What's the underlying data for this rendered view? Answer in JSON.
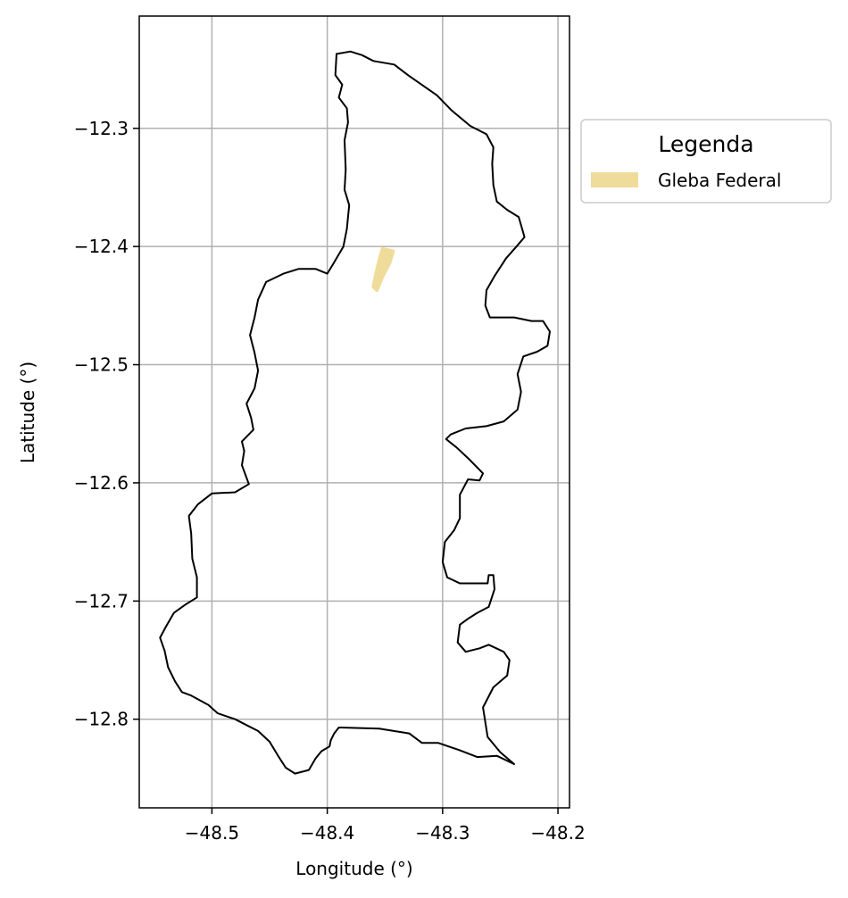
{
  "chart_data": {
    "type": "map",
    "xlabel": "Longitude (°)",
    "ylabel": "Latitude (°)",
    "xlim": [
      -48.563,
      -48.19
    ],
    "ylim": [
      -12.875,
      -12.205
    ],
    "xticks": [
      -48.5,
      -48.4,
      -48.3,
      -48.2
    ],
    "xtick_labels": [
      "−48.5",
      "−48.4",
      "−48.3",
      "−48.2"
    ],
    "yticks": [
      -12.3,
      -12.4,
      -12.5,
      -12.6,
      -12.7,
      -12.8
    ],
    "ytick_labels": [
      "−12.3",
      "−12.4",
      "−12.5",
      "−12.6",
      "−12.7",
      "−12.8"
    ],
    "grid": true,
    "legend": {
      "title": "Legenda",
      "placement": "outside-right-top",
      "entries": [
        {
          "label": "Gleba Federal",
          "color": "#f0dc9a"
        }
      ]
    },
    "boundary": {
      "stroke": "#000000",
      "fill": "none",
      "coordinates": [
        [
          -48.392,
          -12.237
        ],
        [
          -48.38,
          -12.235
        ],
        [
          -48.37,
          -12.238
        ],
        [
          -48.36,
          -12.243
        ],
        [
          -48.342,
          -12.246
        ],
        [
          -48.33,
          -12.255
        ],
        [
          -48.305,
          -12.272
        ],
        [
          -48.292,
          -12.285
        ],
        [
          -48.276,
          -12.298
        ],
        [
          -48.262,
          -12.305
        ],
        [
          -48.256,
          -12.316
        ],
        [
          -48.257,
          -12.33
        ],
        [
          -48.256,
          -12.348
        ],
        [
          -48.253,
          -12.362
        ],
        [
          -48.244,
          -12.369
        ],
        [
          -48.234,
          -12.375
        ],
        [
          -48.229,
          -12.392
        ],
        [
          -48.236,
          -12.4
        ],
        [
          -48.245,
          -12.41
        ],
        [
          -48.255,
          -12.425
        ],
        [
          -48.262,
          -12.437
        ],
        [
          -48.263,
          -12.45
        ],
        [
          -48.259,
          -12.46
        ],
        [
          -48.25,
          -12.46
        ],
        [
          -48.238,
          -12.46
        ],
        [
          -48.223,
          -12.463
        ],
        [
          -48.213,
          -12.463
        ],
        [
          -48.207,
          -12.472
        ],
        [
          -48.209,
          -12.484
        ],
        [
          -48.218,
          -12.489
        ],
        [
          -48.23,
          -12.493
        ],
        [
          -48.235,
          -12.508
        ],
        [
          -48.232,
          -12.523
        ],
        [
          -48.235,
          -12.538
        ],
        [
          -48.247,
          -12.548
        ],
        [
          -48.262,
          -12.552
        ],
        [
          -48.28,
          -12.554
        ],
        [
          -48.293,
          -12.559
        ],
        [
          -48.297,
          -12.563
        ],
        [
          -48.288,
          -12.57
        ],
        [
          -48.277,
          -12.58
        ],
        [
          -48.265,
          -12.592
        ],
        [
          -48.268,
          -12.598
        ],
        [
          -48.278,
          -12.597
        ],
        [
          -48.285,
          -12.61
        ],
        [
          -48.285,
          -12.63
        ],
        [
          -48.29,
          -12.64
        ],
        [
          -48.298,
          -12.65
        ],
        [
          -48.3,
          -12.667
        ],
        [
          -48.296,
          -12.68
        ],
        [
          -48.285,
          -12.685
        ],
        [
          -48.27,
          -12.685
        ],
        [
          -48.261,
          -12.685
        ],
        [
          -48.26,
          -12.678
        ],
        [
          -48.256,
          -12.678
        ],
        [
          -48.255,
          -12.69
        ],
        [
          -48.26,
          -12.705
        ],
        [
          -48.27,
          -12.71
        ],
        [
          -48.278,
          -12.715
        ],
        [
          -48.285,
          -12.72
        ],
        [
          -48.287,
          -12.735
        ],
        [
          -48.28,
          -12.743
        ],
        [
          -48.268,
          -12.74
        ],
        [
          -48.26,
          -12.737
        ],
        [
          -48.247,
          -12.743
        ],
        [
          -48.242,
          -12.75
        ],
        [
          -48.244,
          -12.763
        ],
        [
          -48.256,
          -12.773
        ],
        [
          -48.265,
          -12.79
        ],
        [
          -48.261,
          -12.815
        ],
        [
          -48.25,
          -12.828
        ],
        [
          -48.238,
          -12.838
        ],
        [
          -48.253,
          -12.831
        ],
        [
          -48.27,
          -12.832
        ],
        [
          -48.286,
          -12.826
        ],
        [
          -48.304,
          -12.82
        ],
        [
          -48.318,
          -12.82
        ],
        [
          -48.329,
          -12.812
        ],
        [
          -48.355,
          -12.808
        ],
        [
          -48.39,
          -12.807
        ],
        [
          -48.394,
          -12.812
        ],
        [
          -48.397,
          -12.818
        ],
        [
          -48.398,
          -12.823
        ],
        [
          -48.405,
          -12.827
        ],
        [
          -48.41,
          -12.833
        ],
        [
          -48.416,
          -12.843
        ],
        [
          -48.428,
          -12.846
        ],
        [
          -48.436,
          -12.841
        ],
        [
          -48.442,
          -12.832
        ],
        [
          -48.45,
          -12.819
        ],
        [
          -48.46,
          -12.81
        ],
        [
          -48.47,
          -12.805
        ],
        [
          -48.48,
          -12.8
        ],
        [
          -48.495,
          -12.795
        ],
        [
          -48.503,
          -12.788
        ],
        [
          -48.518,
          -12.78
        ],
        [
          -48.526,
          -12.777
        ],
        [
          -48.532,
          -12.768
        ],
        [
          -48.538,
          -12.756
        ],
        [
          -48.541,
          -12.742
        ],
        [
          -48.545,
          -12.731
        ],
        [
          -48.54,
          -12.722
        ],
        [
          -48.533,
          -12.71
        ],
        [
          -48.523,
          -12.703
        ],
        [
          -48.513,
          -12.697
        ],
        [
          -48.513,
          -12.68
        ],
        [
          -48.517,
          -12.664
        ],
        [
          -48.518,
          -12.643
        ],
        [
          -48.52,
          -12.628
        ],
        [
          -48.512,
          -12.618
        ],
        [
          -48.5,
          -12.609
        ],
        [
          -48.48,
          -12.608
        ],
        [
          -48.468,
          -12.601
        ],
        [
          -48.474,
          -12.585
        ],
        [
          -48.472,
          -12.573
        ],
        [
          -48.474,
          -12.565
        ],
        [
          -48.464,
          -12.555
        ],
        [
          -48.466,
          -12.545
        ],
        [
          -48.47,
          -12.533
        ],
        [
          -48.463,
          -12.52
        ],
        [
          -48.46,
          -12.505
        ],
        [
          -48.463,
          -12.49
        ],
        [
          -48.467,
          -12.475
        ],
        [
          -48.463,
          -12.46
        ],
        [
          -48.46,
          -12.445
        ],
        [
          -48.453,
          -12.43
        ],
        [
          -48.438,
          -12.423
        ],
        [
          -48.425,
          -12.419
        ],
        [
          -48.41,
          -12.419
        ],
        [
          -48.4,
          -12.423
        ],
        [
          -48.395,
          -12.415
        ],
        [
          -48.386,
          -12.4
        ],
        [
          -48.383,
          -12.385
        ],
        [
          -48.381,
          -12.365
        ],
        [
          -48.385,
          -12.352
        ],
        [
          -48.384,
          -12.335
        ],
        [
          -48.385,
          -12.31
        ],
        [
          -48.382,
          -12.295
        ],
        [
          -48.383,
          -12.283
        ],
        [
          -48.39,
          -12.274
        ],
        [
          -48.387,
          -12.263
        ],
        [
          -48.393,
          -12.255
        ],
        [
          -48.392,
          -12.237
        ]
      ]
    },
    "gleba": {
      "label": "Gleba Federal",
      "color": "#f0dc9a",
      "coordinates": [
        [
          -48.352,
          -12.402
        ],
        [
          -48.343,
          -12.404
        ],
        [
          -48.346,
          -12.414
        ],
        [
          -48.352,
          -12.425
        ],
        [
          -48.357,
          -12.437
        ],
        [
          -48.36,
          -12.434
        ],
        [
          -48.357,
          -12.42
        ],
        [
          -48.354,
          -12.408
        ],
        [
          -48.352,
          -12.402
        ]
      ]
    }
  }
}
